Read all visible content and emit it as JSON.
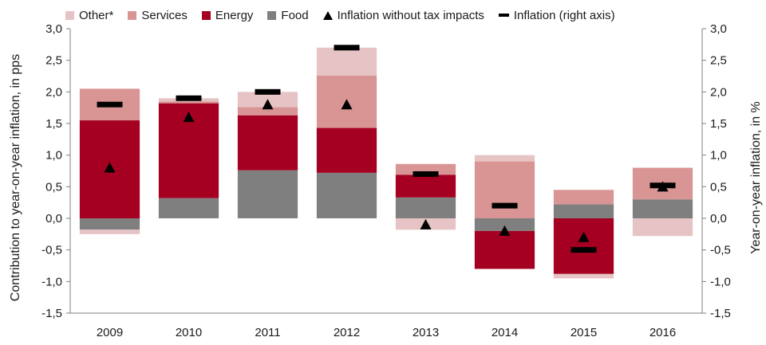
{
  "chart_data": {
    "type": "bar",
    "categories": [
      "2009",
      "2010",
      "2011",
      "2012",
      "2013",
      "2014",
      "2015",
      "2016"
    ],
    "series": [
      {
        "name": "Food",
        "color": "#7f7f7f",
        "values": [
          -0.18,
          0.32,
          0.76,
          0.72,
          0.33,
          -0.2,
          0.22,
          0.3
        ]
      },
      {
        "name": "Energy",
        "color": "#a50021",
        "values": [
          1.55,
          1.5,
          0.87,
          0.71,
          0.36,
          -0.6,
          -0.88,
          0.0
        ]
      },
      {
        "name": "Services",
        "color": "#d99594",
        "values": [
          0.5,
          0.03,
          0.13,
          0.83,
          0.17,
          0.9,
          0.23,
          0.5
        ]
      },
      {
        "name": "Other*",
        "color": "#e6c3c4",
        "values": [
          -0.07,
          0.05,
          0.24,
          0.44,
          -0.18,
          0.1,
          -0.07,
          -0.28
        ]
      }
    ],
    "markers": [
      {
        "name": "Inflation without tax impacts",
        "shape": "triangle",
        "values": [
          0.8,
          1.6,
          1.8,
          1.8,
          -0.1,
          -0.2,
          -0.3,
          0.5
        ]
      },
      {
        "name": "Inflation (right axis)",
        "shape": "dash",
        "values": [
          1.8,
          1.9,
          2.0,
          2.7,
          0.7,
          0.2,
          -0.5,
          0.52
        ]
      }
    ],
    "ylabel": "Contribution to year-on-year inflation, in pps",
    "y2label": "Year-on-year inflation, in %",
    "ylim": [
      -1.5,
      3.0
    ],
    "y2lim": [
      -1.5,
      3.0
    ],
    "yticks": [
      "3,0",
      "2,5",
      "2,0",
      "1,5",
      "1,0",
      "0,5",
      "0,0",
      "-0,5",
      "-1,0",
      "-1,5"
    ],
    "grid": false,
    "legend_position": "top"
  }
}
